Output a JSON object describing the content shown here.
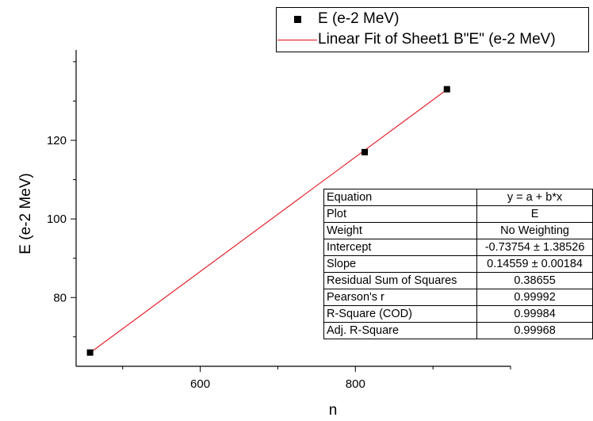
{
  "chart_data": {
    "type": "scatter",
    "xlabel": "n",
    "ylabel": "E (e-2 MeV)",
    "xlim": [
      440,
      1000
    ],
    "ylim": [
      62.5,
      143
    ],
    "xticks": [
      600,
      800
    ],
    "yticks": [
      80,
      100,
      120
    ],
    "series": [
      {
        "name": "E (e-2 MeV)",
        "kind": "scatter",
        "marker": "square",
        "color": "#000000",
        "x": [
          458,
          812,
          918
        ],
        "y": [
          66,
          117,
          133
        ]
      },
      {
        "name": "Linear Fit of Sheet1 B\"E\" (e-2 MeV)",
        "kind": "line",
        "color": "#e0101a",
        "x": [
          458,
          918
        ],
        "y": [
          65.94,
          132.92
        ]
      }
    ],
    "legend": {
      "position": "top-right",
      "entries": [
        "E (e-2 MeV)",
        "Linear Fit of Sheet1 B\"E\" (e-2 MeV)"
      ]
    },
    "fit_table": [
      {
        "key": "Equation",
        "value": "y = a + b*x"
      },
      {
        "key": "Plot",
        "value": "E"
      },
      {
        "key": "Weight",
        "value": "No Weighting"
      },
      {
        "key": "Intercept",
        "value": "-0.73754 ± 1.38526"
      },
      {
        "key": "Slope",
        "value": "0.14559 ± 0.00184"
      },
      {
        "key": "Residual Sum of Squares",
        "value": "0.38655"
      },
      {
        "key": "Pearson's r",
        "value": "0.99992"
      },
      {
        "key": "R-Square (COD)",
        "value": "0.99984"
      },
      {
        "key": "Adj. R-Square",
        "value": "0.99968"
      }
    ],
    "grid": false
  }
}
